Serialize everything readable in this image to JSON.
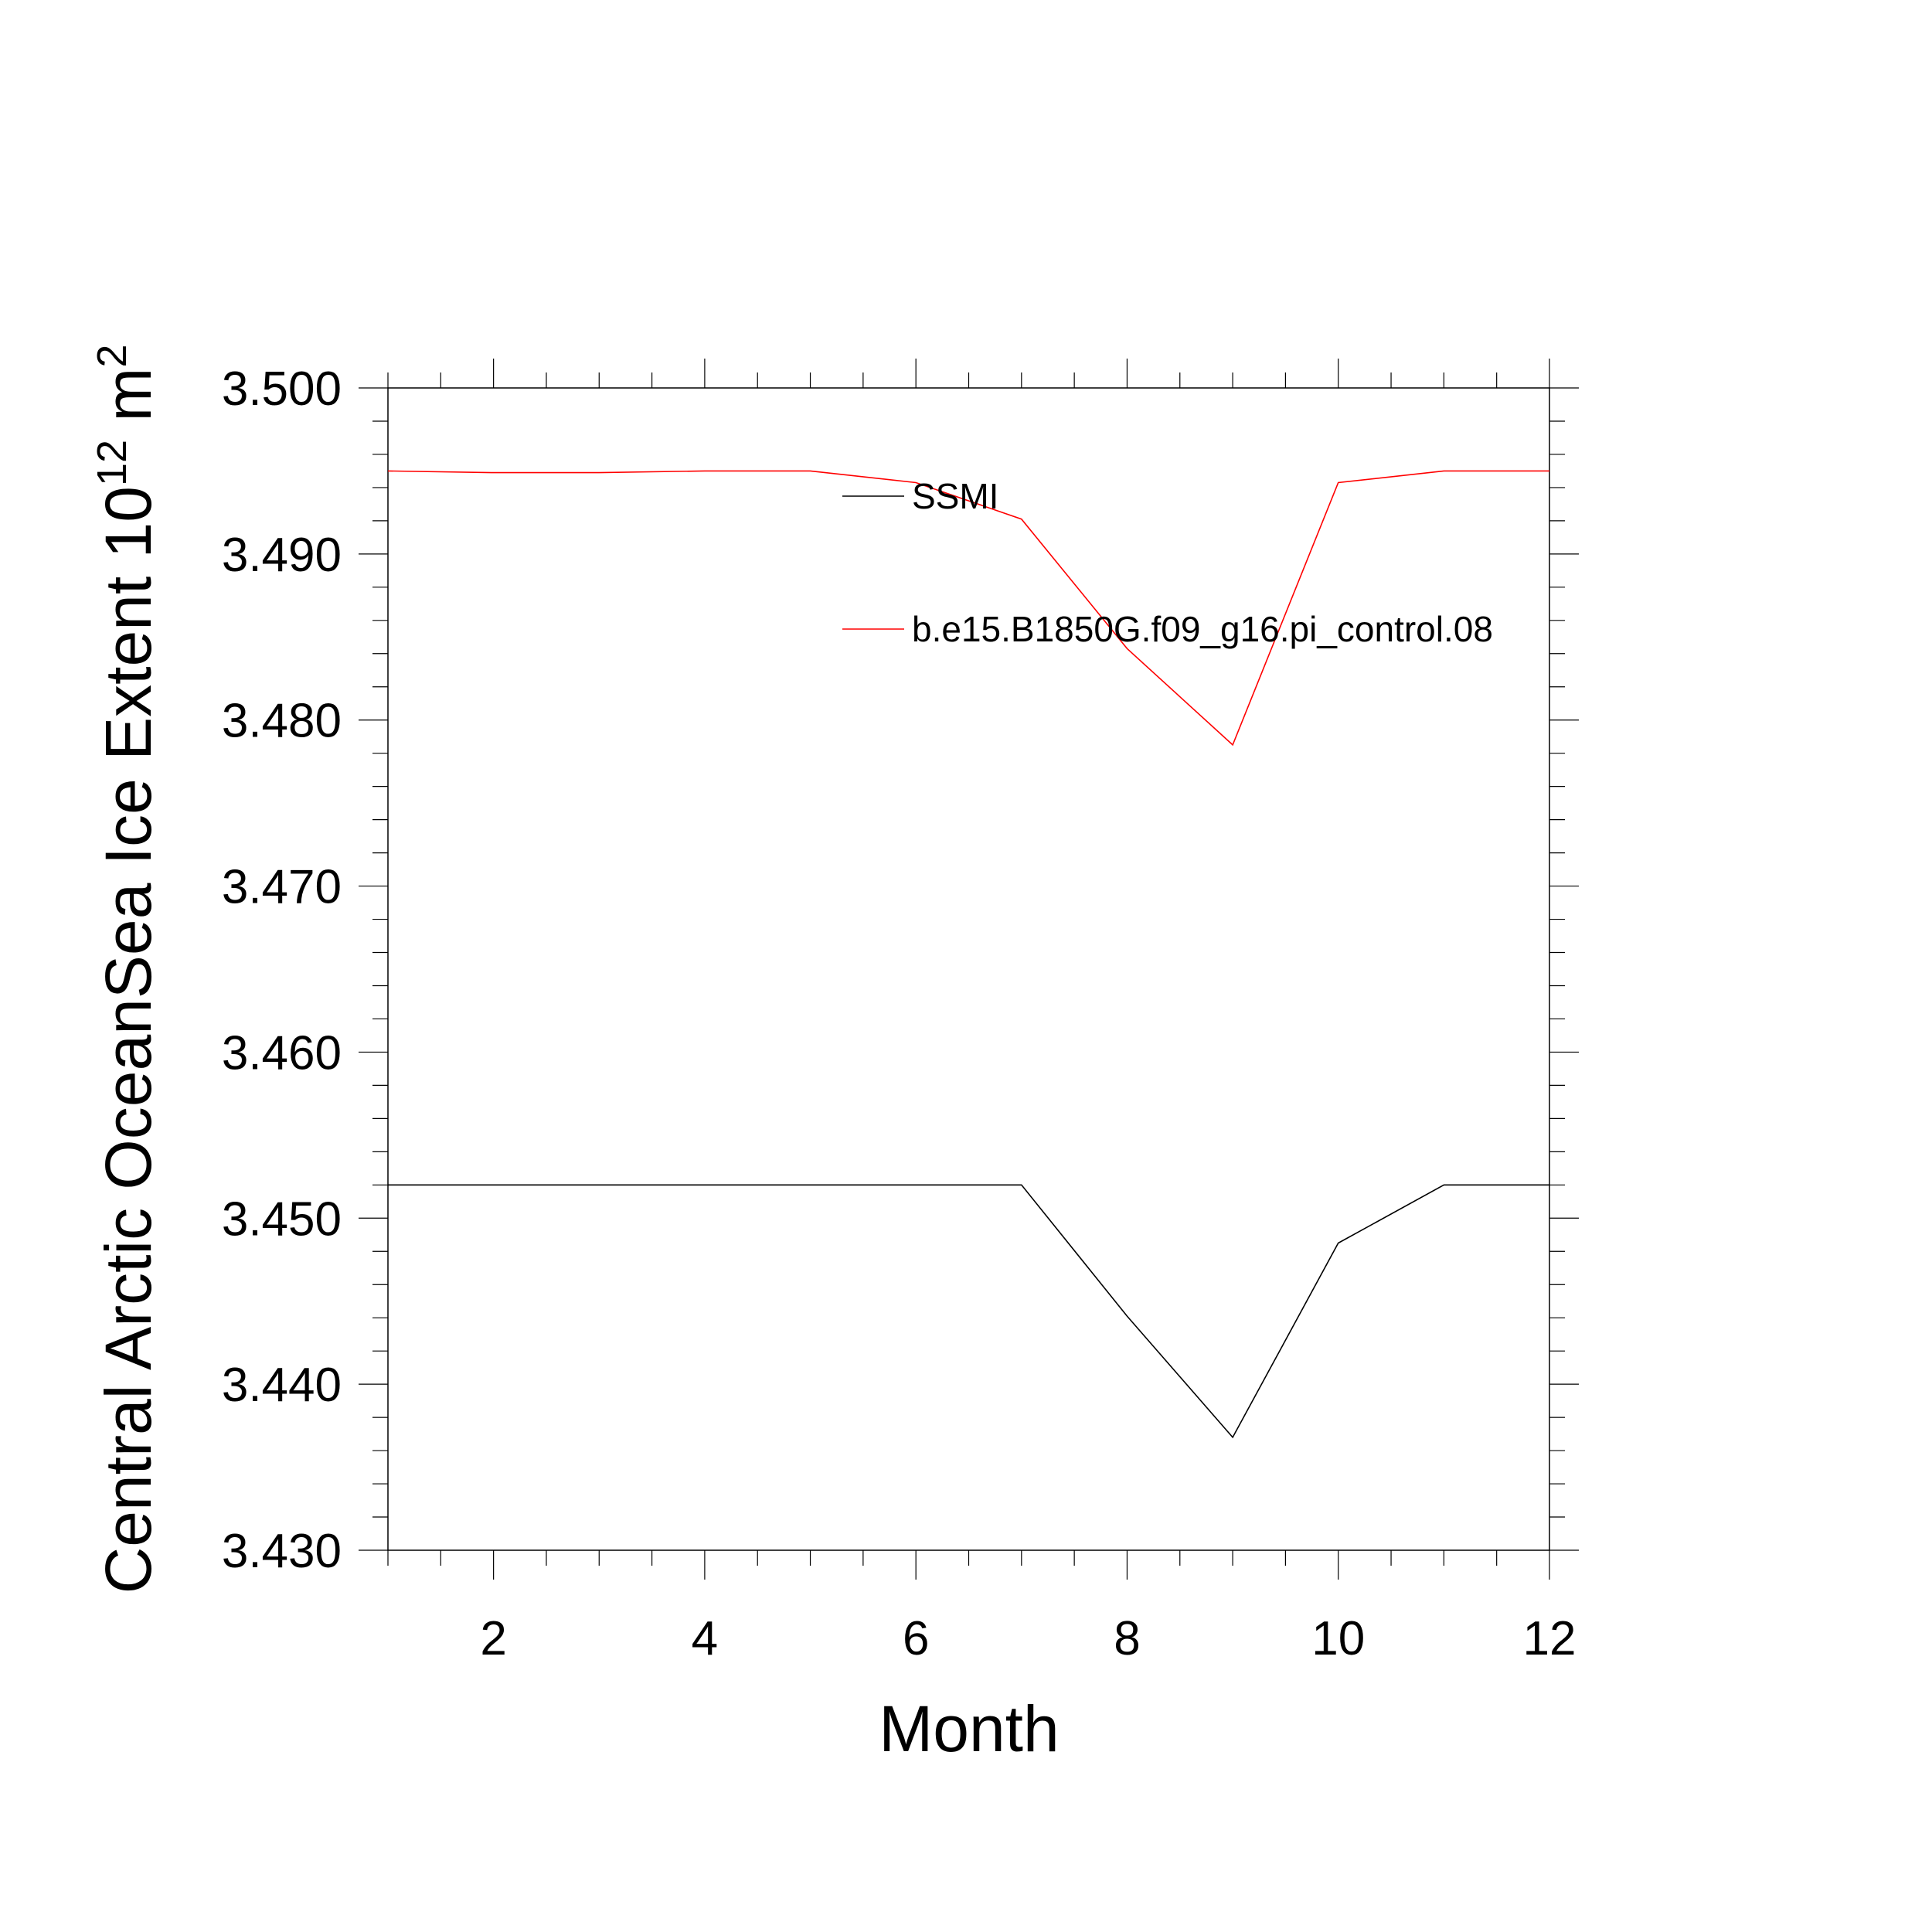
{
  "chart_data": {
    "type": "line",
    "xlabel": "Month",
    "ylabel": {
      "main": "Central Arctic OceanSea Ice Extent 10",
      "exp": "12",
      "unit_base": " m",
      "unit_exp": "2"
    },
    "xlim": [
      1,
      12
    ],
    "ylim": [
      3.43,
      3.5
    ],
    "x_ticks": [
      2,
      4,
      6,
      8,
      10,
      12
    ],
    "x_tick_labels": [
      "2",
      "4",
      "6",
      "8",
      "10",
      "12"
    ],
    "y_ticks": [
      3.43,
      3.44,
      3.45,
      3.46,
      3.47,
      3.48,
      3.49,
      3.5
    ],
    "y_tick_labels": [
      "3.430",
      "3.440",
      "3.450",
      "3.460",
      "3.470",
      "3.480",
      "3.490",
      "3.500"
    ],
    "grid": false,
    "legend_position": "top-center",
    "x": [
      1,
      2,
      3,
      4,
      5,
      6,
      7,
      8,
      9,
      10,
      11,
      12
    ],
    "series": [
      {
        "name": "SSMI",
        "color": "#000000",
        "values": [
          3.452,
          3.452,
          3.452,
          3.452,
          3.452,
          3.452,
          3.452,
          3.4441,
          3.4368,
          3.4485,
          3.452,
          3.452
        ]
      },
      {
        "name": "b.e15.B1850G.f09_g16.pi_control.08",
        "color": "#ff0000",
        "values": [
          3.495,
          3.4949,
          3.4949,
          3.495,
          3.495,
          3.4943,
          3.4921,
          3.4843,
          3.4785,
          3.4943,
          3.495,
          3.495
        ]
      }
    ]
  }
}
